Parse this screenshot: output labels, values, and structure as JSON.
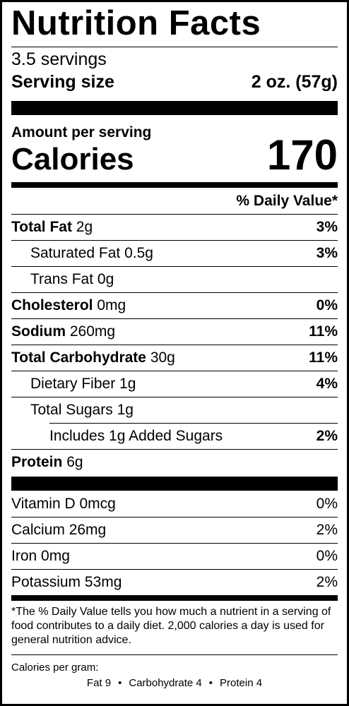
{
  "label": {
    "title": "Nutrition Facts",
    "servings": "3.5 servings",
    "serving_size_label": "Serving size",
    "serving_size_value": "2 oz. (57g)",
    "amount_per_serving": "Amount per serving",
    "calories_label": "Calories",
    "calories_value": "170",
    "daily_value_header": "% Daily Value*"
  },
  "nutrients": [
    {
      "name": "Total Fat",
      "amount": "2g",
      "dv": "3%"
    },
    {
      "name": "Saturated Fat",
      "amount": "0.5g",
      "dv": "3%"
    },
    {
      "name": "Trans Fat",
      "amount": "0g",
      "dv": ""
    },
    {
      "name": "Cholesterol",
      "amount": "0mg",
      "dv": "0%"
    },
    {
      "name": "Sodium",
      "amount": "260mg",
      "dv": "11%"
    },
    {
      "name": "Total Carbohydrate",
      "amount": "30g",
      "dv": "11%"
    },
    {
      "name": "Dietary Fiber",
      "amount": "1g",
      "dv": "4%"
    },
    {
      "name": "Total Sugars",
      "amount": "1g",
      "dv": ""
    },
    {
      "name": "Includes 1g Added Sugars",
      "amount": "",
      "dv": "2%"
    },
    {
      "name": "Protein",
      "amount": "6g",
      "dv": ""
    }
  ],
  "vitamins": [
    {
      "name": "Vitamin D",
      "amount": "0mcg",
      "dv": "0%"
    },
    {
      "name": "Calcium",
      "amount": "26mg",
      "dv": "2%"
    },
    {
      "name": "Iron",
      "amount": "0mg",
      "dv": "0%"
    },
    {
      "name": "Potassium",
      "amount": "53mg",
      "dv": "2%"
    }
  ],
  "footnote": "*The % Daily Value tells you how much a nutrient in a serving of food contributes to a daily diet. 2,000 calories a day is used for general nutrition advice.",
  "calories_per_gram": {
    "label": "Calories per gram:",
    "fat": "Fat 9",
    "carbohydrate": "Carbohydrate 4",
    "protein": "Protein 4",
    "separator": "•"
  }
}
